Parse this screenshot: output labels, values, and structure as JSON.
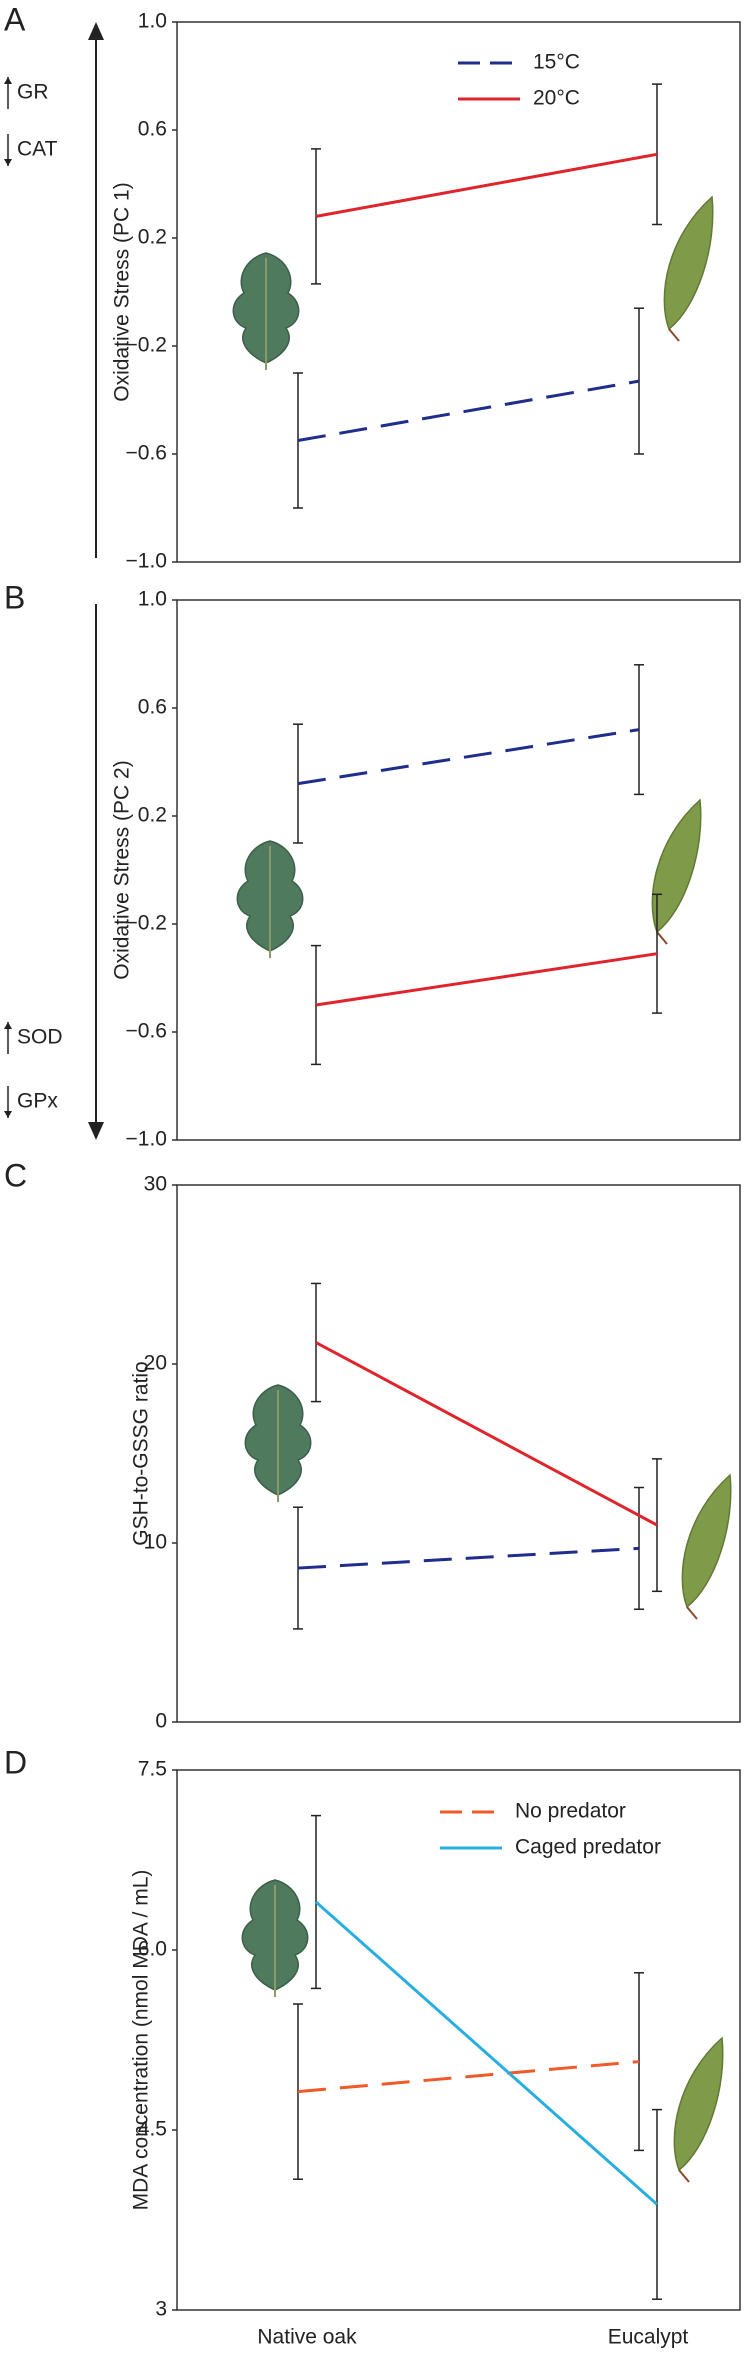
{
  "chart_data": [
    {
      "type": "line",
      "panel": "A",
      "ylabel": "Oxidative Stress (PC 1)",
      "annotations": [
        "GR",
        "CAT"
      ],
      "categories": [
        "Native oak",
        "Eucalypt"
      ],
      "series": [
        {
          "name": "15°C",
          "color": "#1f2d8c",
          "dashed": true,
          "values": [
            -0.55,
            -0.33
          ],
          "errors": [
            0.25,
            0.27
          ]
        },
        {
          "name": "20°C",
          "color": "#e0242b",
          "dashed": false,
          "values": [
            0.28,
            0.51
          ],
          "errors": [
            0.25,
            0.26
          ]
        }
      ],
      "ylim": [
        -1,
        1
      ],
      "yticks": [
        {
          "value": 1,
          "label": "1.0"
        },
        0.6,
        0.2,
        {
          "value": -0.2,
          "label": "−0.2"
        },
        {
          "value": -0.6,
          "label": "−0.6"
        },
        {
          "value": -1,
          "label": "−1.0"
        }
      ]
    },
    {
      "type": "line",
      "panel": "B",
      "ylabel": "Oxidative Stress (PC 2)",
      "annotations": [
        "SOD",
        "GPx"
      ],
      "categories": [
        "Native oak",
        "Eucalypt"
      ],
      "series": [
        {
          "color": "#1f2d8c",
          "dashed": true,
          "values": [
            0.32,
            0.52
          ],
          "errors": [
            0.22,
            0.24
          ]
        },
        {
          "color": "#e0242b",
          "dashed": false,
          "values": [
            -0.5,
            -0.31
          ],
          "errors": [
            0.22,
            0.22
          ]
        }
      ],
      "ylim": [
        -1,
        1
      ],
      "yticks": [
        {
          "value": 1,
          "label": "1.0"
        },
        0.6,
        0.2,
        {
          "value": -0.2,
          "label": "−0.2"
        },
        {
          "value": -0.6,
          "label": "−0.6"
        },
        {
          "value": -1,
          "label": "−1.0"
        }
      ]
    },
    {
      "type": "line",
      "panel": "C",
      "ylabel": "GSH-to-GSSG ratio",
      "categories": [
        "Native oak",
        "Eucalypt"
      ],
      "series": [
        {
          "color": "#1f2d8c",
          "dashed": true,
          "values": [
            8.6,
            9.7
          ],
          "errors": [
            3.4,
            3.4
          ]
        },
        {
          "color": "#e0242b",
          "dashed": false,
          "values": [
            21.2,
            11.0
          ],
          "errors": [
            3.3,
            3.7
          ]
        }
      ],
      "ylim": [
        0,
        30
      ],
      "yticks": [
        30,
        20,
        10,
        0
      ]
    },
    {
      "type": "line",
      "panel": "D",
      "ylabel": "MDA concentration (nmol MDA / mL)",
      "categories": [
        "Native oak",
        "Eucalypt"
      ],
      "series": [
        {
          "name": "No predator",
          "color": "#ef5a28",
          "dashed": true,
          "values": [
            4.82,
            5.07
          ],
          "errors": [
            0.73,
            0.74
          ]
        },
        {
          "name": "Caged predator",
          "color": "#29aee0",
          "dashed": false,
          "values": [
            6.4,
            3.88
          ],
          "errors": [
            0.72,
            0.79
          ]
        }
      ],
      "ylim": [
        3,
        7.5
      ],
      "yticks": [
        7.5,
        {
          "value": 6,
          "label": "6.0"
        },
        4.5,
        3
      ]
    }
  ]
}
